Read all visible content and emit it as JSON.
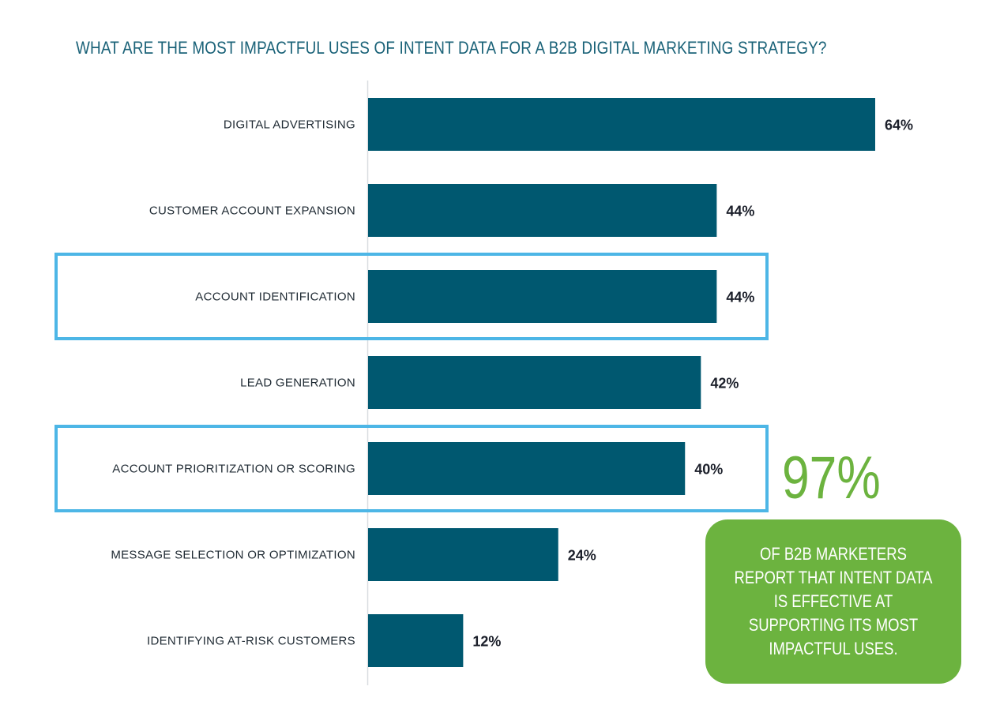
{
  "chart_data": {
    "type": "bar",
    "orientation": "horizontal",
    "title": "WHAT ARE THE MOST IMPACTFUL USES OF INTENT DATA FOR A B2B DIGITAL MARKETING STRATEGY?",
    "categories": [
      "DIGITAL ADVERTISING",
      "CUSTOMER ACCOUNT EXPANSION",
      "ACCOUNT IDENTIFICATION",
      "LEAD GENERATION",
      "ACCOUNT PRIORITIZATION OR SCORING",
      "MESSAGE SELECTION OR OPTIMIZATION",
      "IDENTIFYING AT-RISK CUSTOMERS"
    ],
    "values": [
      64,
      44,
      44,
      42,
      40,
      24,
      12
    ],
    "value_labels": [
      "64%",
      "44%",
      "44%",
      "42%",
      "40%",
      "24%",
      "12%"
    ],
    "highlighted_categories": [
      "ACCOUNT IDENTIFICATION",
      "ACCOUNT PRIORITIZATION OR SCORING"
    ],
    "xlim": [
      0,
      64
    ],
    "grid": false,
    "bar_color": "#005870",
    "highlight_color": "#4db6e6"
  },
  "callout": {
    "stat": "97%",
    "lines": [
      "OF B2B MARKETERS",
      "REPORT THAT INTENT DATA",
      "IS EFFECTIVE AT",
      "SUPPORTING ITS MOST",
      "IMPACTFUL USES."
    ],
    "color": "#6cb33f"
  }
}
